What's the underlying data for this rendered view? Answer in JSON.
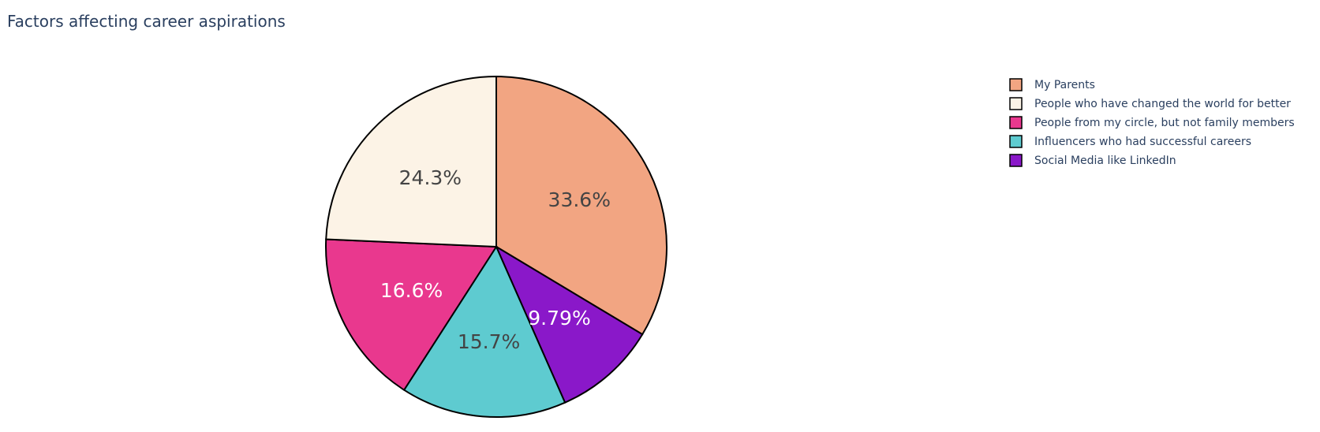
{
  "chart_data": {
    "type": "pie",
    "title": "Factors affecting career aspirations",
    "legend_position": "top-right",
    "direction": "clockwise",
    "start_angle_deg": 0,
    "slices": [
      {
        "label": "My Parents",
        "value": 33.6,
        "text": "33.6%",
        "color": "#f2a582",
        "text_color": "#444444"
      },
      {
        "label": "Social Media like LinkedIn",
        "value": 9.79,
        "text": "9.79%",
        "color": "#8a18c9",
        "text_color": "#ffffff"
      },
      {
        "label": "Influencers who had successful careers",
        "value": 15.7,
        "text": "15.7%",
        "color": "#5ecbd0",
        "text_color": "#444444"
      },
      {
        "label": "People from my circle, but not family members",
        "value": 16.6,
        "text": "16.6%",
        "color": "#e9388e",
        "text_color": "#ffffff"
      },
      {
        "label": "People who have changed the world for better",
        "value": 24.3,
        "text": "24.3%",
        "color": "#fcf3e6",
        "text_color": "#444444"
      }
    ],
    "legend_order": [
      "My Parents",
      "People who have changed the world for better",
      "People from my circle, but not family members",
      "Influencers who had successful careers",
      "Social Media like LinkedIn"
    ]
  }
}
